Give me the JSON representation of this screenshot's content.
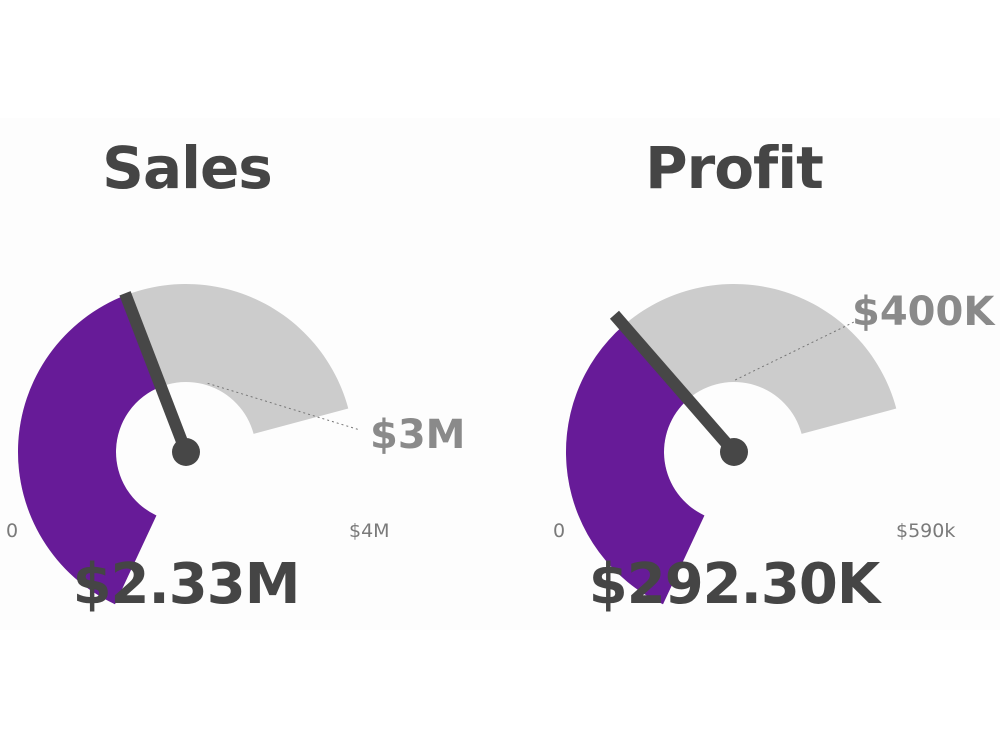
{
  "colors": {
    "fill": "#671b98",
    "track": "#cccccc",
    "needle": "#474747",
    "text": "#454545",
    "label": "#8a8a8a"
  },
  "chart_data": [
    {
      "type": "gauge",
      "title": "Sales",
      "value": 2330000,
      "value_label": "$2.33M",
      "min": 0,
      "max": 4000000,
      "target": 3000000,
      "min_label": "0",
      "max_label": "$4M",
      "target_label": "$3M"
    },
    {
      "type": "gauge",
      "title": "Profit",
      "value": 292300,
      "value_label": "$292.30K",
      "min": 0,
      "max": 590000,
      "target": 400000,
      "min_label": "0",
      "max_label": "$590k",
      "target_label": "$400K"
    }
  ]
}
